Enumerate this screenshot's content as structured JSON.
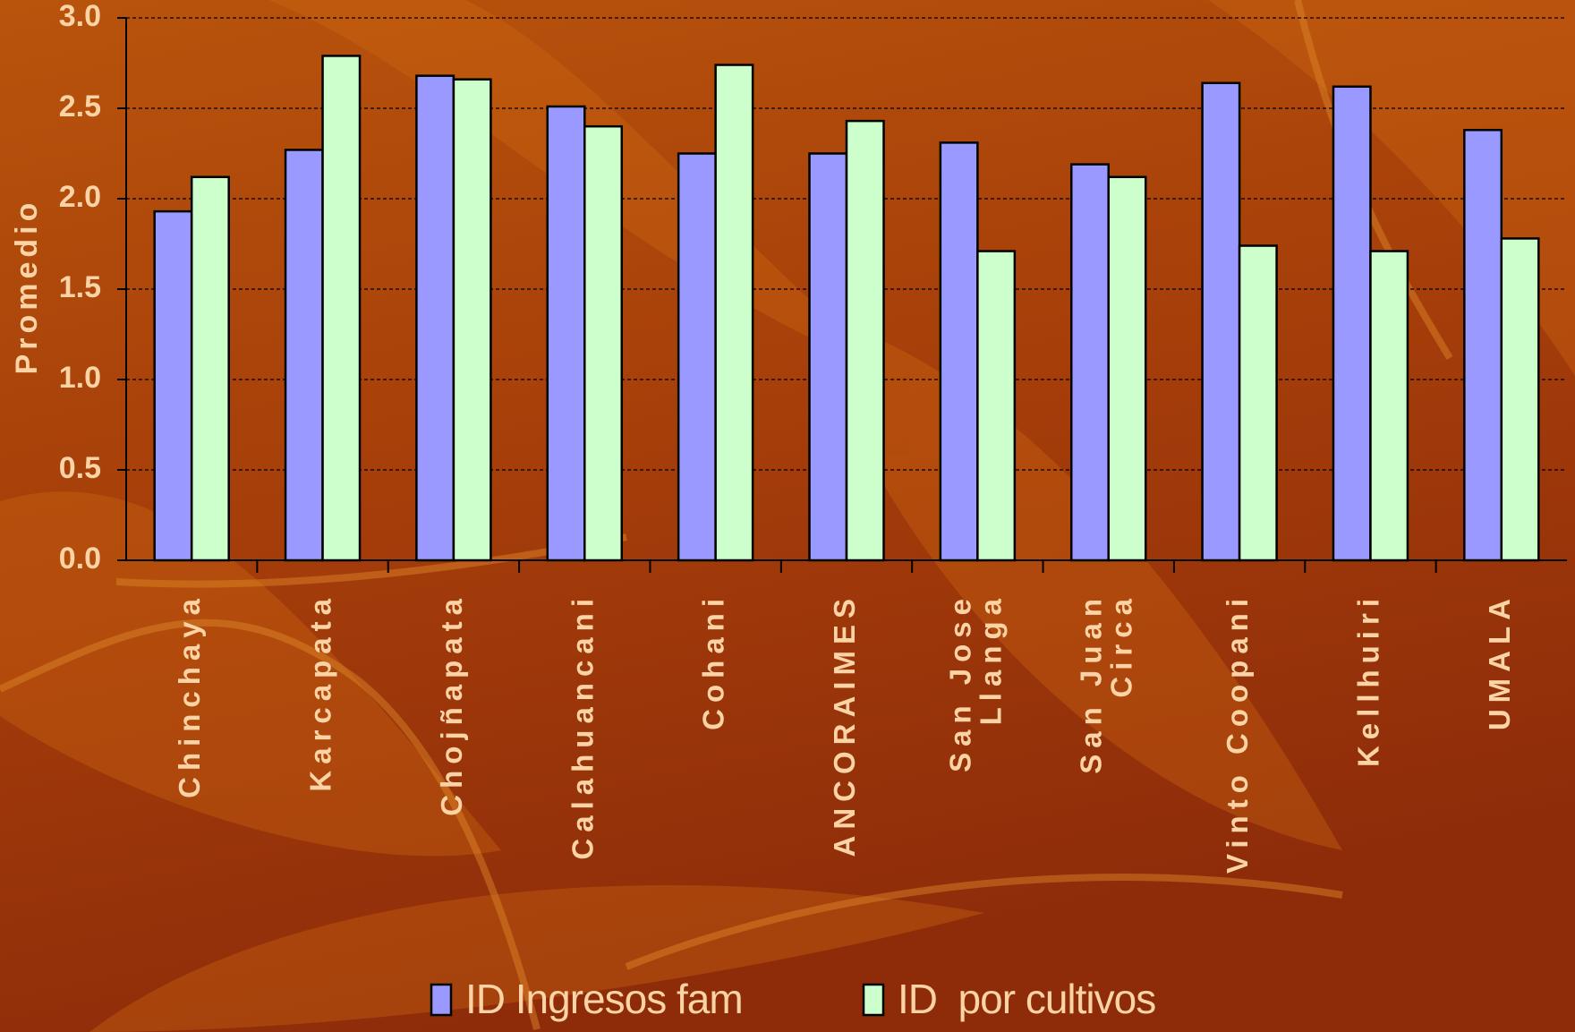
{
  "chart_data": {
    "type": "bar",
    "ylabel": "Promedio",
    "categories": [
      "Chinchaya",
      "Karcapata",
      "Chojñapata",
      "Calahuancani",
      "Cohani",
      "ANCORAIMES",
      "San Jose\nLlanga",
      "San Juan\nCirca",
      "Vinto Coopani",
      "Kellhuiri",
      "UMALA"
    ],
    "series": [
      {
        "name": "ID Ingresos fam",
        "color": "#9999ff",
        "values": [
          1.93,
          2.27,
          2.68,
          2.51,
          2.25,
          2.25,
          2.31,
          2.19,
          2.64,
          2.62,
          2.38
        ]
      },
      {
        "name": "ID  por cultivos",
        "color": "#ccffcc",
        "values": [
          2.12,
          2.79,
          2.66,
          2.4,
          2.74,
          2.43,
          1.71,
          2.12,
          1.74,
          1.71,
          1.78
        ]
      }
    ],
    "ylim": [
      0,
      3
    ],
    "yticks": [
      {
        "value": 0,
        "label": "0.0"
      },
      {
        "value": 0.5,
        "label": "0.5"
      },
      {
        "value": 1,
        "label": "1.0"
      },
      {
        "value": 1.5,
        "label": "1.5"
      },
      {
        "value": 2,
        "label": "2.0"
      },
      {
        "value": 2.5,
        "label": "2.5"
      },
      {
        "value": 3,
        "label": "3.0"
      }
    ],
    "grid": true
  }
}
